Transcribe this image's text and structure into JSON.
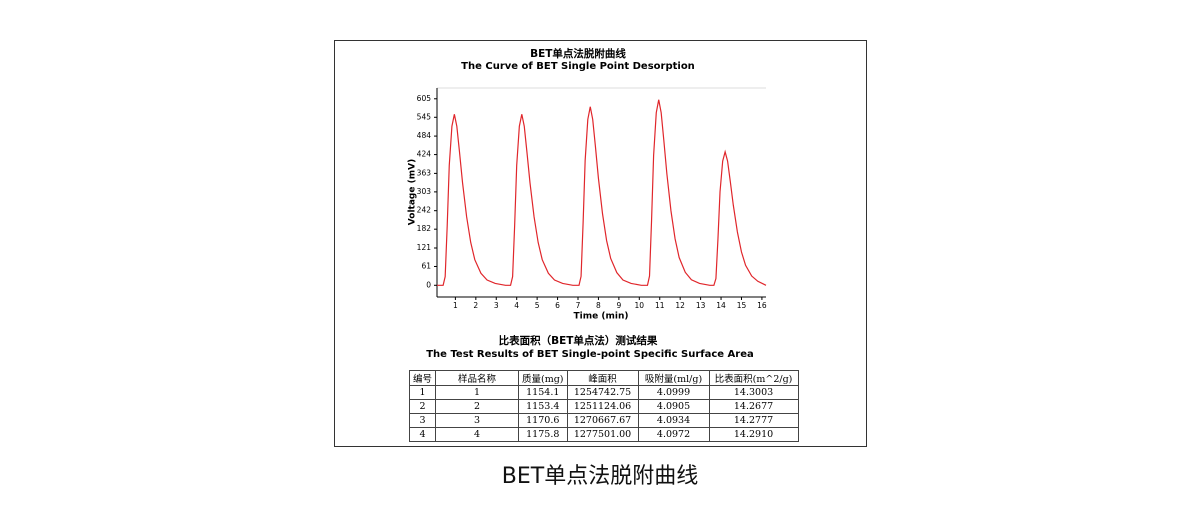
{
  "chart_data": {
    "type": "line",
    "title": "BET单点法脱附曲线",
    "subtitle": "The Curve of BET Single Point Desorption",
    "x_label": "Time (min)",
    "y_label": "Voltage (mV)",
    "color": "#e0262b",
    "xlim": [
      0.1,
      16.2
    ],
    "xticks": [
      1,
      2,
      3,
      4,
      5,
      6,
      7,
      8,
      9,
      10,
      11,
      12,
      13,
      14,
      15,
      16
    ],
    "ylim": [
      -38,
      640
    ],
    "yticks": [
      0,
      61,
      121,
      182,
      242,
      303,
      363,
      424,
      484,
      545,
      605
    ],
    "x": [
      0.1,
      0.4,
      0.5,
      0.6,
      0.7,
      0.83,
      0.95,
      1.07,
      1.2,
      1.35,
      1.55,
      1.75,
      1.95,
      2.25,
      2.55,
      2.95,
      3.45,
      3.7,
      3.8,
      3.9,
      4.0,
      4.13,
      4.25,
      4.37,
      4.5,
      4.65,
      4.85,
      5.05,
      5.25,
      5.55,
      5.85,
      6.25,
      6.75,
      7.05,
      7.15,
      7.25,
      7.35,
      7.48,
      7.6,
      7.72,
      7.85,
      8.0,
      8.2,
      8.4,
      8.6,
      8.9,
      9.2,
      9.6,
      10.1,
      10.4,
      10.5,
      10.6,
      10.7,
      10.83,
      10.95,
      11.07,
      11.2,
      11.35,
      11.55,
      11.75,
      11.95,
      12.25,
      12.55,
      12.95,
      13.45,
      13.65,
      13.75,
      13.85,
      13.95,
      14.08,
      14.2,
      14.32,
      14.45,
      14.6,
      14.8,
      15.0,
      15.2,
      15.5,
      15.8,
      16.2
    ],
    "values": [
      0,
      0,
      28,
      194,
      389,
      516,
      555,
      516,
      433,
      333,
      222,
      139,
      83,
      39,
      17,
      6,
      0,
      0,
      28,
      194,
      389,
      516,
      555,
      516,
      433,
      333,
      222,
      139,
      83,
      39,
      17,
      6,
      0,
      0,
      29,
      203,
      405,
      538,
      579,
      538,
      452,
      347,
      232,
      145,
      87,
      41,
      17,
      6,
      0,
      0,
      30,
      211,
      421,
      560,
      602,
      560,
      470,
      361,
      241,
      151,
      90,
      42,
      18,
      6,
      0,
      0,
      22,
      152,
      303,
      403,
      433,
      403,
      338,
      260,
      173,
      108,
      65,
      30,
      13,
      0
    ],
    "grid": false
  },
  "table": {
    "title": "比表面积（BET单点法）测试结果",
    "subtitle": "The Test Results of BET Single-point Specific Surface Area",
    "header": [
      "编号",
      "样品名称",
      "质量(mg)",
      "峰面积",
      "吸附量(ml/g)",
      "比表面积(m^2/g)"
    ],
    "rows": [
      [
        "1",
        "1",
        "1154.1",
        "1254742.75",
        "4.0999",
        "14.3003"
      ],
      [
        "2",
        "2",
        "1153.4",
        "1251124.06",
        "4.0905",
        "14.2677"
      ],
      [
        "3",
        "3",
        "1170.6",
        "1270667.67",
        "4.0934",
        "14.2777"
      ],
      [
        "4",
        "4",
        "1175.8",
        "1277501.00",
        "4.0972",
        "14.2910"
      ]
    ]
  },
  "caption": "BET单点法脱附曲线"
}
